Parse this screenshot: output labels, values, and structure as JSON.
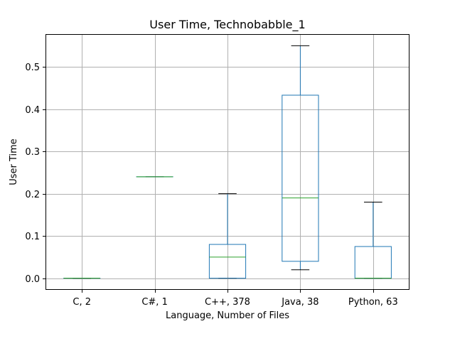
{
  "chart_data": {
    "type": "box",
    "title": "User Time, Technobabble_1",
    "xlabel": "Language, Number of Files",
    "ylabel": "User Time",
    "ylim": [
      -0.0275,
      0.5775
    ],
    "yticks": [
      0.0,
      0.1,
      0.2,
      0.3,
      0.4,
      0.5
    ],
    "ytick_labels": [
      "0.0",
      "0.1",
      "0.2",
      "0.3",
      "0.4",
      "0.5"
    ],
    "grid": true,
    "categories": [
      "C, 2",
      "C#, 1",
      "C++, 378",
      "Java, 38",
      "Python, 63"
    ],
    "boxes": [
      {
        "whislo": 0.0,
        "q1": 0.0,
        "med": 0.0,
        "q3": 0.0,
        "whishi": 0.0
      },
      {
        "whislo": 0.24,
        "q1": 0.24,
        "med": 0.24,
        "q3": 0.24,
        "whishi": 0.24
      },
      {
        "whislo": 0.0,
        "q1": 0.0,
        "med": 0.05,
        "q3": 0.08,
        "whishi": 0.2
      },
      {
        "whislo": 0.02,
        "q1": 0.04,
        "med": 0.19,
        "q3": 0.433,
        "whishi": 0.55
      },
      {
        "whislo": 0.0,
        "q1": 0.0,
        "med": 0.0,
        "q3": 0.075,
        "whishi": 0.18
      }
    ],
    "colors": {
      "box": "#1f77b4",
      "median": "#2ca02c",
      "whisker": "#1f77b4",
      "cap": "#000000",
      "grid": "#b0b0b0"
    }
  }
}
